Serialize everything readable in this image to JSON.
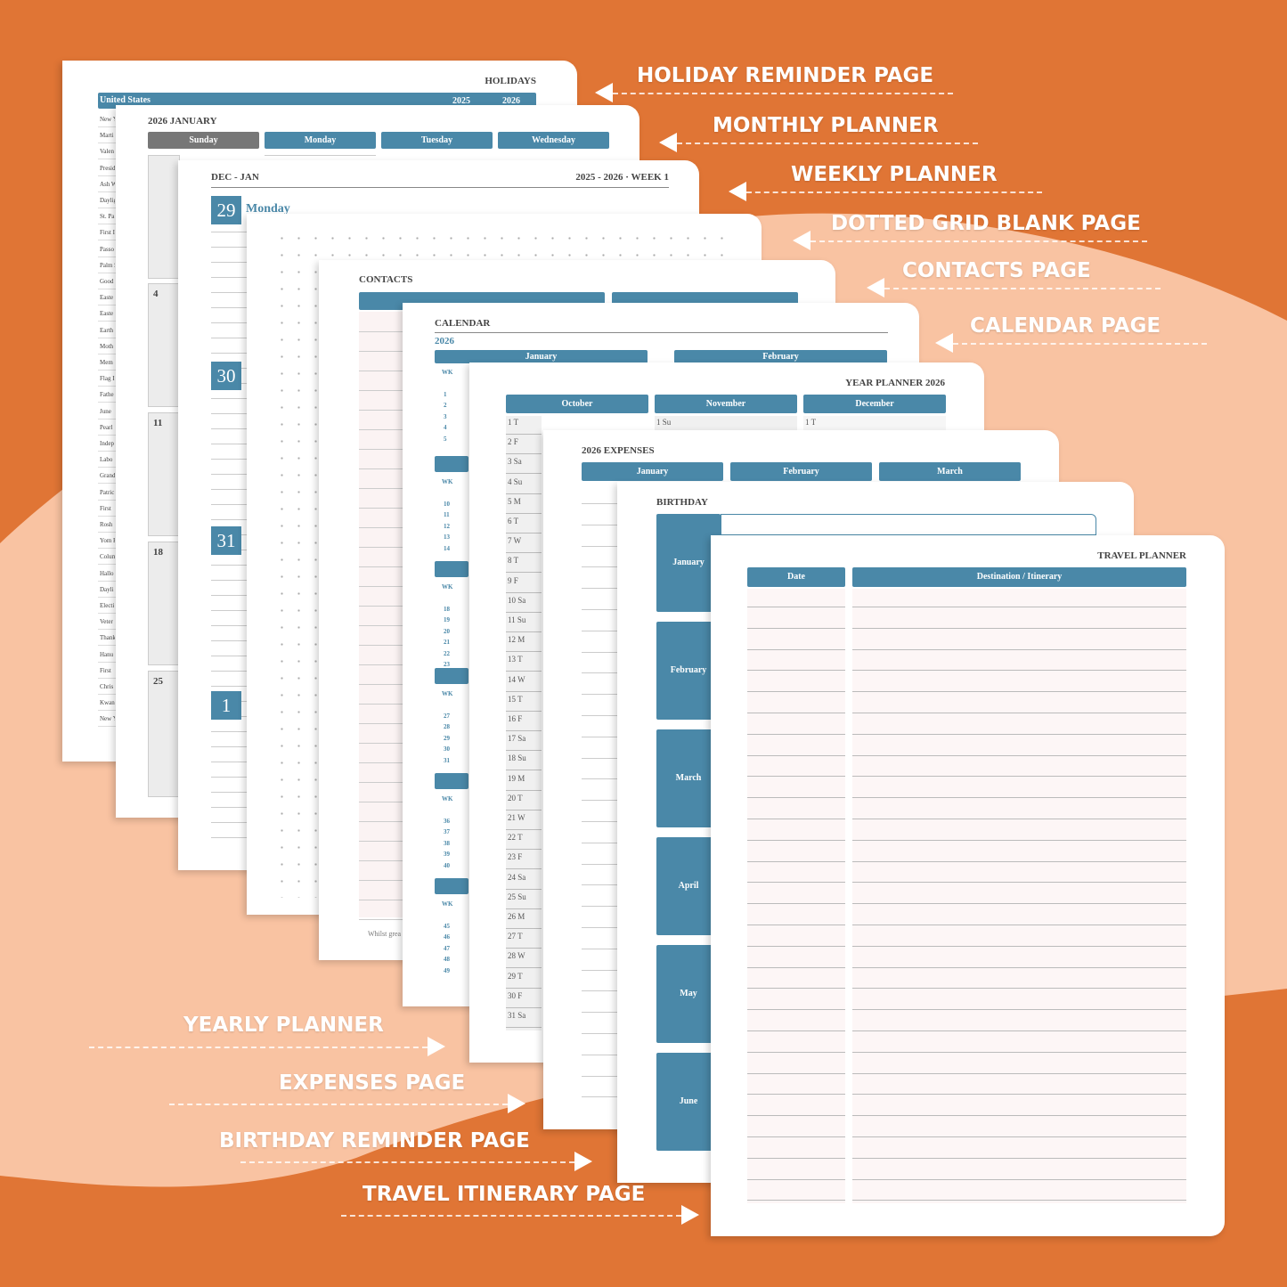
{
  "right_labels": [
    "HOLIDAY REMINDER PAGE",
    "MONTHLY PLANNER",
    "WEEKLY PLANNER",
    "DOTTED GRID BLANK PAGE",
    "CONTACTS PAGE",
    "CALENDAR PAGE"
  ],
  "left_labels": [
    "YEARLY PLANNER",
    "EXPENSES PAGE",
    "BIRTHDAY REMINDER PAGE",
    "TRAVEL ITINERARY PAGE"
  ],
  "holidays": {
    "title": "HOLIDAYS",
    "country": "United States",
    "years": [
      "2025",
      "2026"
    ],
    "items": [
      "New Y",
      "Marti",
      "Valen",
      "Presid",
      "Ash W",
      "Daylig",
      "St. Pa",
      "First I",
      "Passo",
      "Palm S",
      "Good",
      "Easte",
      "Easte",
      "Earth",
      "Moth",
      "Mem",
      "Flag I",
      "Fathe",
      "June",
      "Pearl",
      "Indep",
      "Labo",
      "Grand",
      "Patric",
      "First",
      "Rosh",
      "Yom K",
      "Colum",
      "Hallo",
      "Dayli",
      "Electi",
      "Veter",
      "Thank",
      "Hanu",
      "First",
      "Chris",
      "Kwan",
      "New Y"
    ]
  },
  "monthly": {
    "title": "2026 JANUARY",
    "weekdays": [
      "Sunday",
      "Monday",
      "Tuesday",
      "Wednesday"
    ],
    "dates": [
      "4",
      "11",
      "18",
      "25"
    ]
  },
  "weekly": {
    "range": "DEC - JAN",
    "week": "2025 - 2026 · WEEK 1",
    "days": [
      {
        "date": "29",
        "name": "Monday"
      },
      {
        "date": "30"
      },
      {
        "date": "31"
      },
      {
        "date": "1"
      }
    ]
  },
  "contacts": {
    "title": "CONTACTS",
    "note": "Whilst grea"
  },
  "calendar": {
    "title": "CALENDAR",
    "year": "2026",
    "months": [
      "January",
      "February"
    ],
    "week_header": "WK",
    "weeks": [
      [
        "1",
        "2",
        "3",
        "4",
        "5"
      ],
      [
        "10",
        "11",
        "12",
        "13",
        "14"
      ],
      [
        "18",
        "19",
        "20",
        "21",
        "22",
        "23"
      ],
      [
        "27",
        "28",
        "29",
        "30",
        "31"
      ],
      [
        "36",
        "37",
        "38",
        "39",
        "40"
      ],
      [
        "45",
        "46",
        "47",
        "48",
        "49"
      ]
    ]
  },
  "year_planner": {
    "title": "YEAR PLANNER 2026",
    "months": [
      "October",
      "November",
      "December"
    ],
    "october_days": [
      "1 T",
      "2 F",
      "3 Sa",
      "4 Su",
      "5 M",
      "6 T",
      "7 W",
      "8 T",
      "9 F",
      "10 Sa",
      "11 Su",
      "12 M",
      "13 T",
      "14 W",
      "15 T",
      "16 F",
      "17 Sa",
      "18 Su",
      "19 M",
      "20 T",
      "21 W",
      "22 T",
      "23 F",
      "24 Sa",
      "25 Su",
      "26 M",
      "27 T",
      "28 W",
      "29 T",
      "30 F",
      "31 Sa"
    ],
    "november_days": [
      "1 Su"
    ],
    "december_days": [
      "1 T"
    ]
  },
  "expenses": {
    "title": "2026 EXPENSES",
    "months": [
      "January",
      "February",
      "March"
    ]
  },
  "birthday": {
    "title": "BIRTHDAY",
    "months": [
      "January",
      "February",
      "March",
      "April",
      "May",
      "June"
    ]
  },
  "travel": {
    "title": "TRAVEL PLANNER",
    "columns": [
      "Date",
      "Destination / Itinerary"
    ]
  }
}
